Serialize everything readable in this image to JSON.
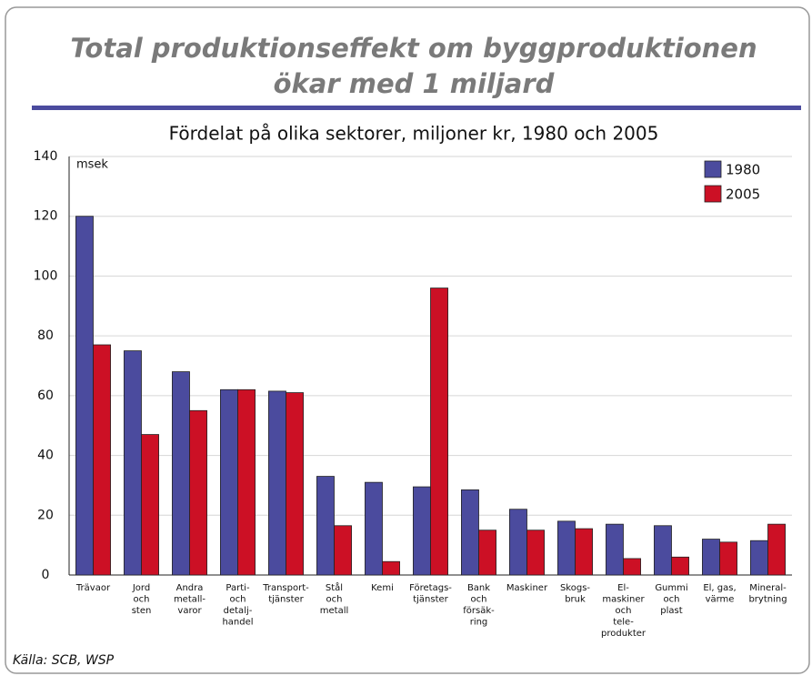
{
  "chart_data": {
    "type": "bar",
    "title": [
      "Total produktionseffekt om byggproduktionen",
      "ökar med 1 miljard"
    ],
    "subtitle": "Fördelat på olika sektorer, miljoner kr, 1980 och 2005",
    "y_label": "msek",
    "source": "Källa: SCB, WSP",
    "categories": [
      "Trävaor",
      "Jord\noch\nsten",
      "Andra\nmetall-\nvaror",
      "Parti-\noch\ndetalj-\nhandel",
      "Transport-\ntjänster",
      "Stål\noch\nmetall",
      "Kemi",
      "Företags-\ntjänster",
      "Bank\noch\nförsäk-\nring",
      "Maskiner",
      "Skogs-\nbruk",
      "El-\nmaskiner\noch\ntele-\nprodukter",
      "Gummi\noch\nplast",
      "El, gas,\nvärme",
      "Mineral-\nbrytning"
    ],
    "series": [
      {
        "name": "1980",
        "color": "#4b4b9e",
        "values": [
          120,
          75,
          68,
          62,
          61.5,
          33,
          31,
          29.5,
          28.5,
          22,
          18,
          17,
          16.5,
          12,
          11.5
        ]
      },
      {
        "name": "2005",
        "color": "#cc1025",
        "values": [
          77,
          47,
          55,
          62,
          61,
          16.5,
          4.5,
          96,
          15,
          15,
          15.5,
          5.5,
          6,
          11,
          17
        ]
      }
    ],
    "ylim": [
      0,
      140
    ],
    "yticks": [
      0,
      20,
      40,
      60,
      80,
      100,
      120,
      140
    ],
    "grid": true,
    "legend": "top-right"
  }
}
